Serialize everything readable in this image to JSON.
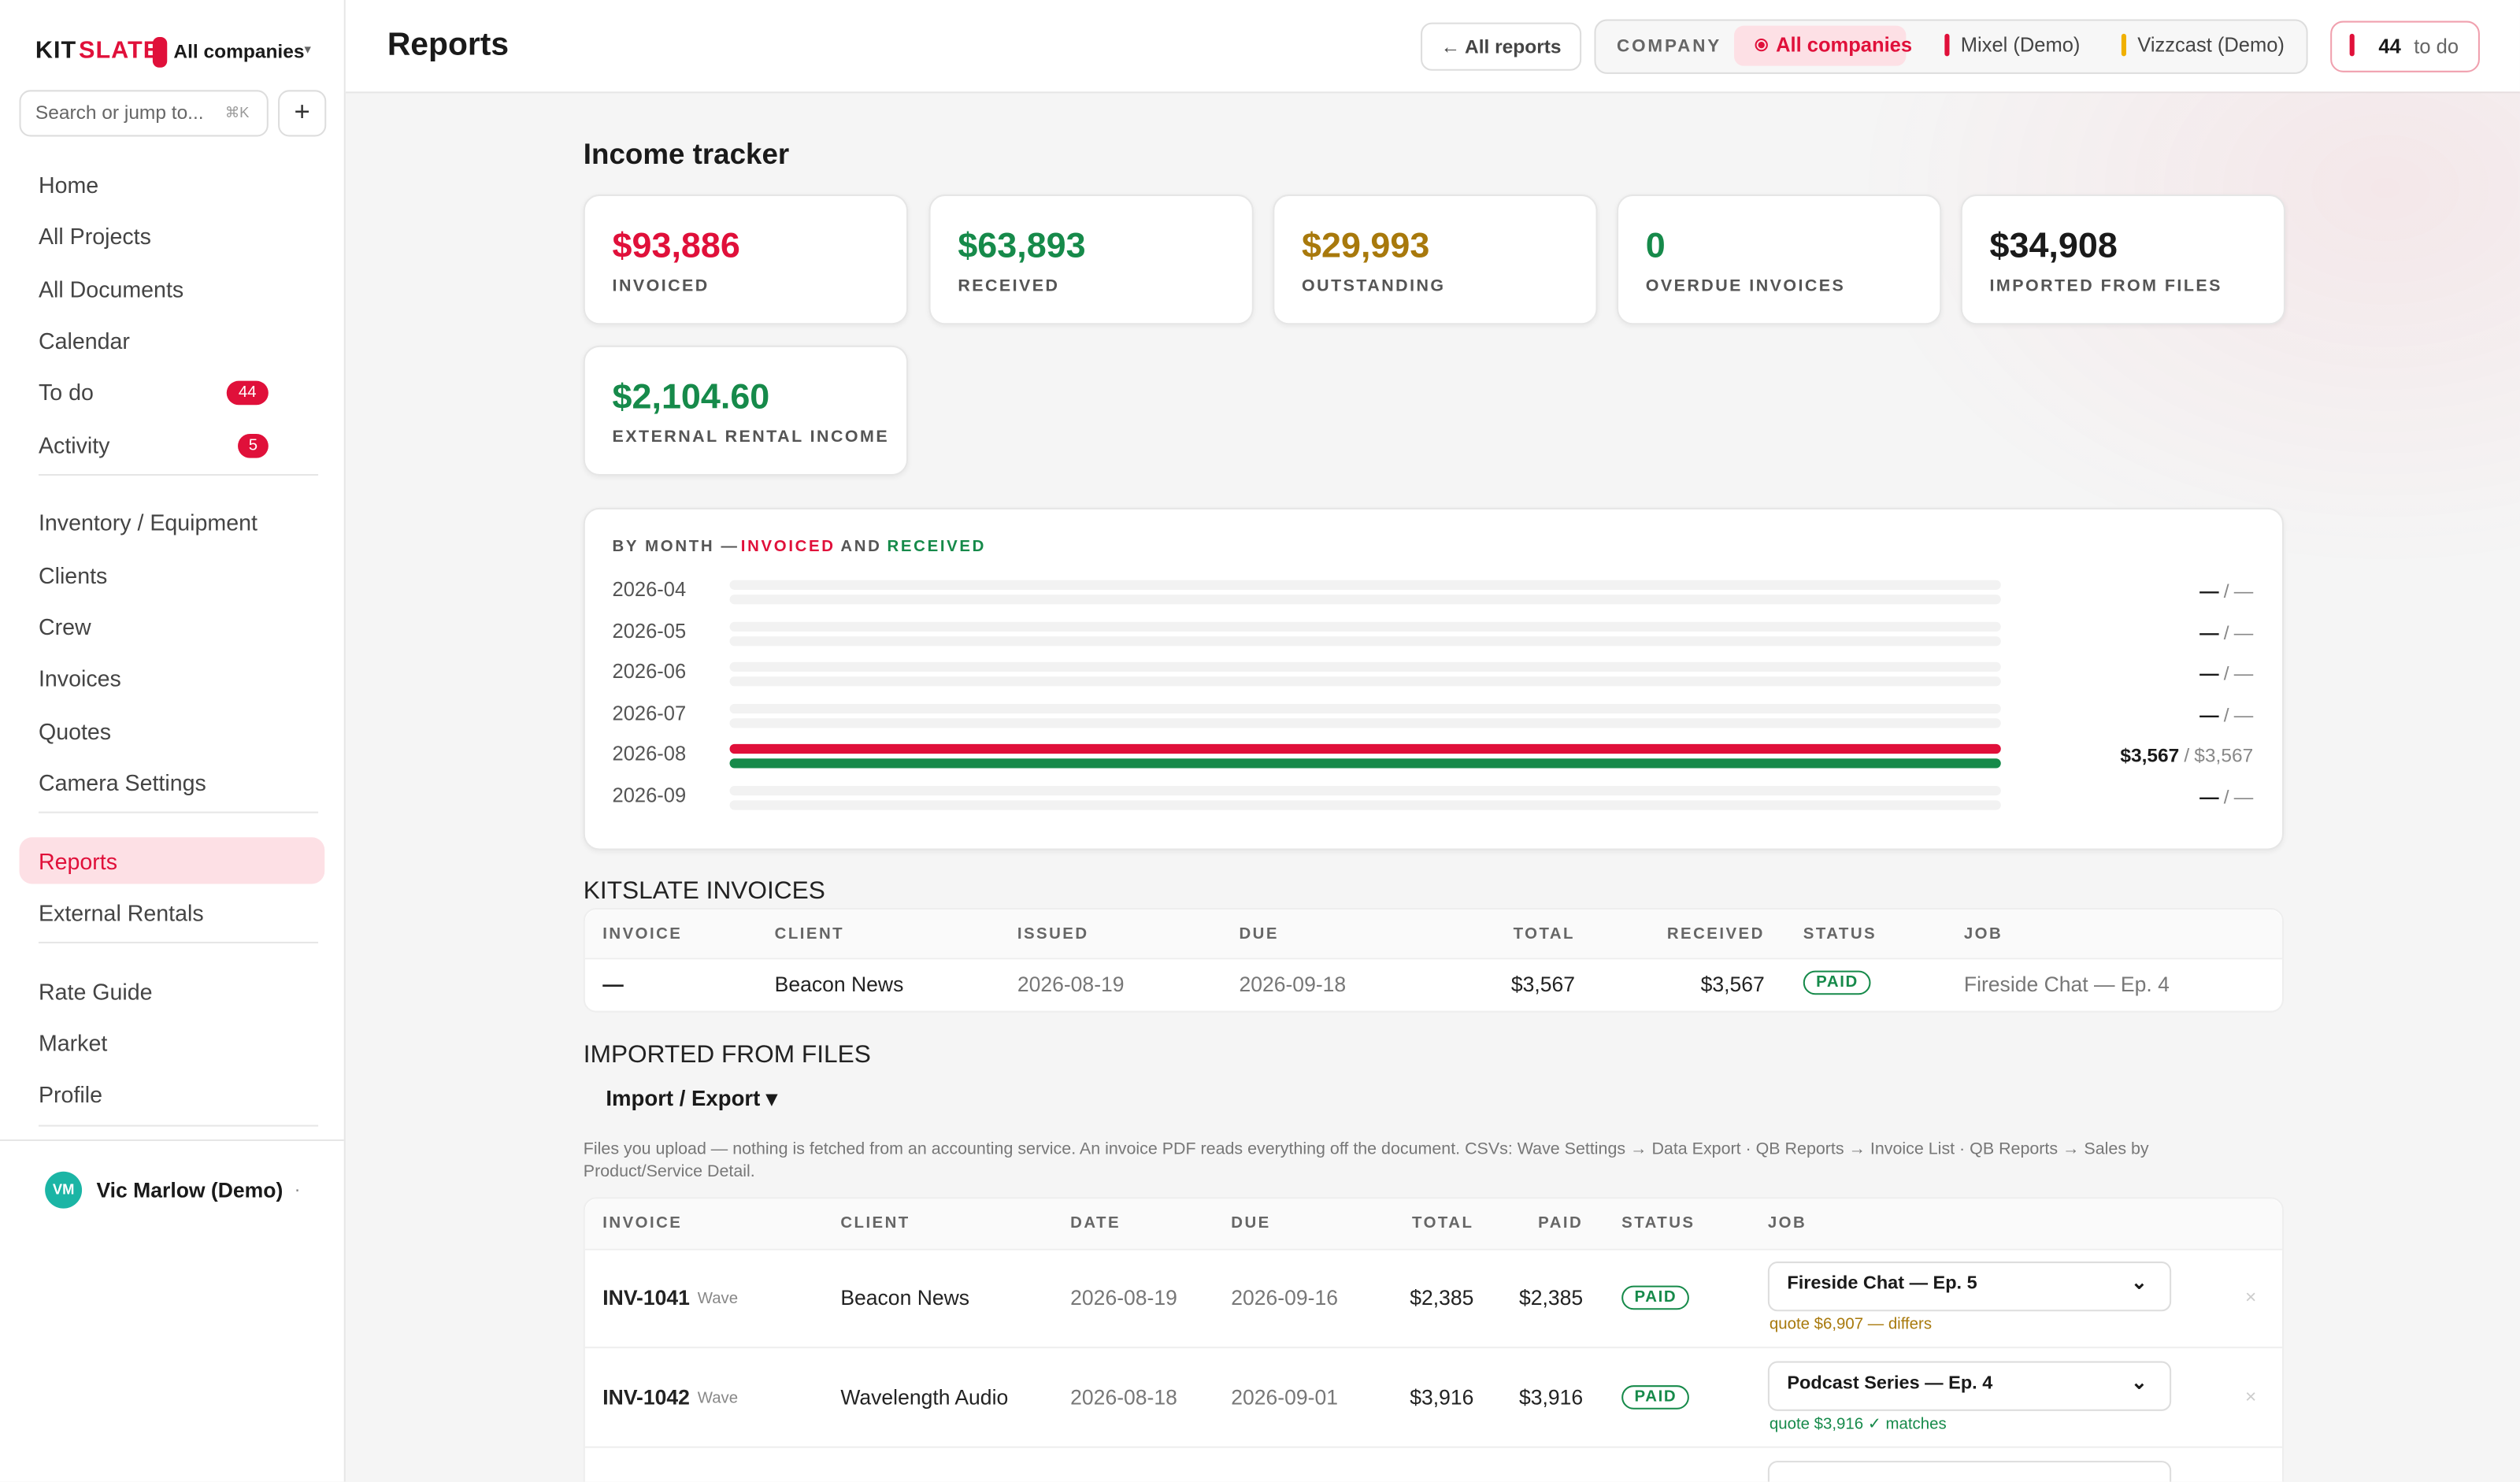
{
  "sidebar": {
    "brand": {
      "first": "KIT",
      "second": "SLATE"
    },
    "company_switcher": "All companies",
    "search_placeholder": "Search or jump to...",
    "search_shortcut": "⌘K",
    "new_button": "+",
    "groups": [
      [
        {
          "label": "Home"
        },
        {
          "label": "All Projects"
        },
        {
          "label": "All Documents"
        },
        {
          "label": "Calendar"
        },
        {
          "label": "To do",
          "badge": 44
        },
        {
          "label": "Activity",
          "badge": 5
        }
      ],
      [
        {
          "label": "Inventory / Equipment"
        },
        {
          "label": "Clients"
        },
        {
          "label": "Crew"
        },
        {
          "label": "Invoices"
        },
        {
          "label": "Quotes"
        },
        {
          "label": "Camera Settings"
        }
      ],
      [
        {
          "label": "Reports",
          "active": true
        },
        {
          "label": "External Rentals"
        }
      ],
      [
        {
          "label": "Rate Guide"
        },
        {
          "label": "Market"
        },
        {
          "label": "Profile"
        }
      ]
    ],
    "user": {
      "initials": "VM",
      "name": "Vic Marlow (Demo)",
      "menu": "·"
    }
  },
  "topbar": {
    "title": "Reports",
    "back": "← All reports",
    "company_label": "COMPANY",
    "companies": [
      {
        "name": "All companies",
        "color": "#e0103a",
        "active": true
      },
      {
        "name": "Mixel (Demo)",
        "color": "#e0103a"
      },
      {
        "name": "Vizzcast (Demo)",
        "color": "#f0b000"
      }
    ],
    "todo_count": 44,
    "todo_label": "to do"
  },
  "income": {
    "title": "Income tracker",
    "cards": [
      {
        "value": "$93,886",
        "label": "INVOICED",
        "color": "#e0103a"
      },
      {
        "value": "$63,893",
        "label": "RECEIVED",
        "color": "#168a4a"
      },
      {
        "value": "$29,993",
        "label": "OUTSTANDING",
        "color": "#a8790c"
      },
      {
        "value": 0,
        "label": "OVERDUE INVOICES",
        "color": "#168a4a"
      },
      {
        "value": "$34,908",
        "label": "IMPORTED FROM FILES",
        "color": "#1a1a1a"
      },
      {
        "value": "$2,104.60",
        "label": "EXTERNAL RENTAL INCOME",
        "color": "#168a4a"
      }
    ]
  },
  "by_month": {
    "heading": {
      "lead": "BY MONTH —",
      "invoiced": "INVOICED",
      "and": "AND",
      "received": "RECEIVED"
    },
    "separator": "/",
    "months": [
      {
        "month": "2026-04",
        "invoiced": "—",
        "received": "—"
      },
      {
        "month": "2026-05",
        "invoiced": "—",
        "received": "—"
      },
      {
        "month": "2026-06",
        "invoiced": "—",
        "received": "—"
      },
      {
        "month": "2026-07",
        "invoiced": "—",
        "received": "—"
      },
      {
        "month": "2026-08",
        "invoiced": "$3,567",
        "received": "$3,567"
      },
      {
        "month": "2026-09",
        "invoiced": "—",
        "received": "—"
      }
    ]
  },
  "kitslate_invoices": {
    "title": "KITSLATE INVOICES",
    "columns": [
      "INVOICE",
      "CLIENT",
      "ISSUED",
      "DUE",
      "TOTAL",
      "RECEIVED",
      "STATUS",
      "JOB"
    ],
    "rows": [
      [
        "—",
        "Beacon News",
        "2026-08-19",
        "2026-09-18",
        "$3,567",
        "$3,567",
        "PAID",
        "Fireside Chat — Ep. 4"
      ]
    ]
  },
  "imported": {
    "title": "IMPORTED FROM FILES",
    "menu": "Import / Export ▾",
    "note": "Files you upload — nothing is fetched from an accounting service. An invoice PDF reads everything off the document. CSVs: Wave Settings → Data Export · QB Reports → Invoice List · QB Reports → Sales by Product/Service Detail.",
    "columns": [
      "INVOICE",
      "CLIENT",
      "DATE",
      "DUE",
      "TOTAL",
      "PAID",
      "STATUS",
      "JOB"
    ],
    "rows": [
      {
        "invoice": "INV-1041",
        "source": "Wave",
        "client": "Beacon News",
        "date": "2026-08-19",
        "due": "2026-09-16",
        "total": "$2,385",
        "paid": "$2,385",
        "status": "PAID",
        "job": "Fireside Chat — Ep. 5",
        "match": "quote $6,907 — differs",
        "match_color": "#a8790c",
        "remove": "×"
      },
      {
        "invoice": "INV-1042",
        "source": "Wave",
        "client": "Wavelength Audio",
        "date": "2026-08-18",
        "due": "2026-09-01",
        "total": "$3,916",
        "paid": "$3,916",
        "status": "PAID",
        "job": "Podcast Series — Ep. 4",
        "match": "quote $3,916 ✓ matches",
        "match_color": "#168a4a",
        "remove": "×"
      }
    ]
  }
}
